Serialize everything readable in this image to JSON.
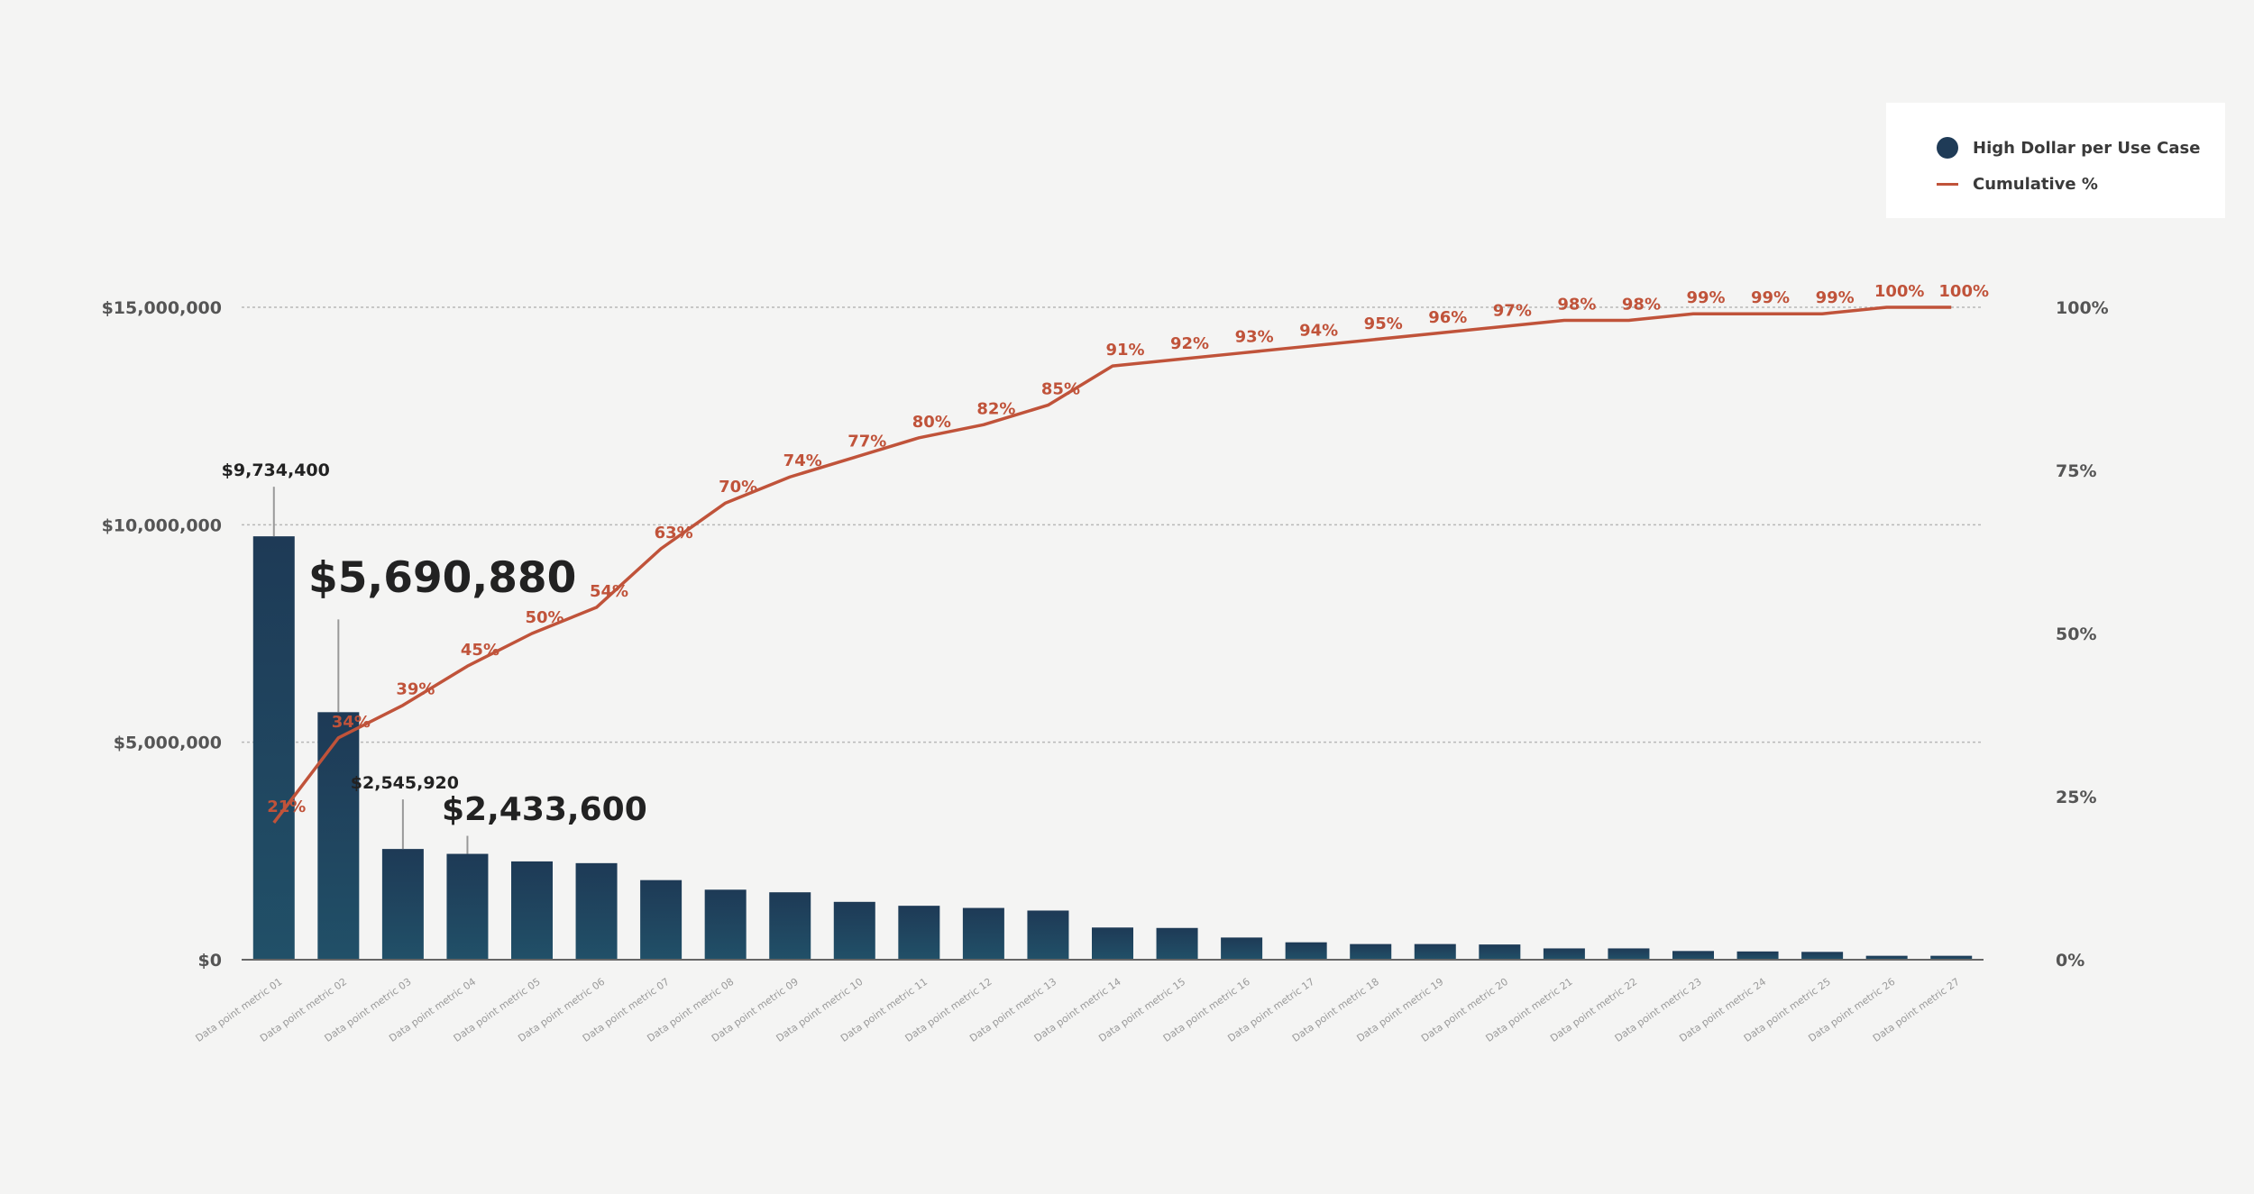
{
  "chart_data": {
    "type": "bar",
    "categories": [
      "Data point metric 01",
      "Data point metric 02",
      "Data point metric 03",
      "Data point metric 04",
      "Data point metric 05",
      "Data point metric 06",
      "Data point metric 07",
      "Data point metric 08",
      "Data point metric 09",
      "Data point metric 10",
      "Data point metric 11",
      "Data point metric 12",
      "Data point metric 13",
      "Data point metric 14",
      "Data point metric 15",
      "Data point metric 16",
      "Data point metric 17",
      "Data point metric 18",
      "Data point metric 19",
      "Data point metric 20",
      "Data point metric 21",
      "Data point metric 22",
      "Data point metric 23",
      "Data point metric 24",
      "Data point metric 25",
      "Data point metric 26",
      "Data point metric 27"
    ],
    "series": [
      {
        "name": "High Dollar per Use Case",
        "type": "bar",
        "axis": "left",
        "color": "#1f3b57",
        "values": [
          9734400,
          5690880,
          2545920,
          2433600,
          2260000,
          2220000,
          1830000,
          1610000,
          1550000,
          1330000,
          1240000,
          1190000,
          1130000,
          740000,
          730000,
          510000,
          400000,
          360000,
          360000,
          350000,
          260000,
          260000,
          200000,
          190000,
          180000,
          90000,
          90000
        ]
      },
      {
        "name": "Cumulative %",
        "type": "line",
        "axis": "right",
        "color": "#c0533a",
        "values": [
          21,
          34,
          39,
          45,
          50,
          54,
          63,
          70,
          74,
          77,
          80,
          82,
          85,
          91,
          92,
          93,
          94,
          95,
          96,
          97,
          98,
          98,
          99,
          99,
          99,
          100,
          100
        ],
        "labels": [
          "21%",
          "34%",
          "39%",
          "45%",
          "50%",
          "54%",
          "63%",
          "70%",
          "74%",
          "77%",
          "80%",
          "82%",
          "85%",
          "91%",
          "92%",
          "93%",
          "94%",
          "95%",
          "96%",
          "97%",
          "98%",
          "98%",
          "99%",
          "99%",
          "99%",
          "100%",
          "100%"
        ]
      }
    ],
    "y_left": {
      "ylim": [
        0,
        15000000
      ],
      "ticks": [
        0,
        5000000,
        10000000,
        15000000
      ],
      "tick_labels": [
        "$0",
        "$5,000,000",
        "$10,000,000",
        "$15,000,000"
      ]
    },
    "y_right": {
      "ylim": [
        0,
        100
      ],
      "ticks": [
        0,
        25,
        50,
        75,
        100
      ],
      "tick_labels": [
        "0%",
        "25%",
        "50%",
        "75%",
        "100%"
      ]
    },
    "bar_value_labels": [
      {
        "index": 0,
        "text": "$9,734,400"
      },
      {
        "index": 2,
        "text": "$2,545,920"
      }
    ],
    "callouts": {
      "big": {
        "index": 1,
        "text": "$5,690,880"
      },
      "medium": {
        "index": 3,
        "text": "$2,433,600"
      }
    },
    "legend": {
      "position": "top-right",
      "items": [
        {
          "label": "High Dollar per Use Case",
          "marker": "dot",
          "color": "#1f3b57"
        },
        {
          "label": "Cumulative %",
          "marker": "line",
          "color": "#c0533a"
        }
      ]
    },
    "grid": true,
    "title": "",
    "xlabel": "",
    "ylabel": ""
  }
}
